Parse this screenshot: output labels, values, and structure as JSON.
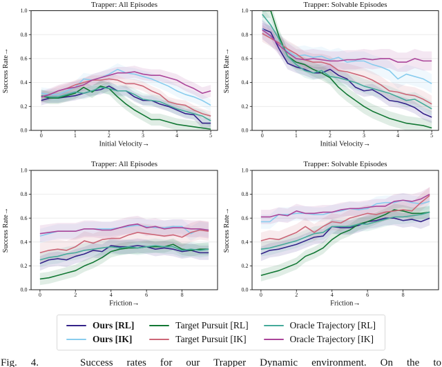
{
  "figure": {
    "caption": "Fig. 4.   Success rates for our Trapper Dynamic environment. On the to"
  },
  "legend": {
    "columns": [
      [
        {
          "label": "Ours [RL]",
          "color": "#332288"
        },
        {
          "label": "Ours [IK]",
          "color": "#88CCEE"
        }
      ],
      [
        {
          "label": "Target Pursuit [RL]",
          "color": "#117733"
        },
        {
          "label": "Target Pursuit [IK]",
          "color": "#CC6677"
        }
      ],
      [
        {
          "label": "Oracle Trajectory [RL]",
          "color": "#44AA99"
        },
        {
          "label": "Oracle Trajectory [IK]",
          "color": "#AA4499"
        }
      ]
    ]
  },
  "chart_data": [
    {
      "type": "line",
      "title": "Trapper: All Episodes",
      "xlabel": "Initial Velocity→",
      "ylabel": "Success Rate→",
      "xlim": [
        -0.3,
        5.2
      ],
      "ylim": [
        0,
        1
      ],
      "xticks": [
        0,
        1,
        2,
        3,
        4,
        5
      ],
      "yticks": [
        0.0,
        0.2,
        0.4,
        0.6,
        0.8,
        1.0
      ],
      "grid": "horizontal",
      "x": [
        0,
        0.25,
        0.5,
        0.75,
        1,
        1.25,
        1.5,
        1.75,
        2,
        2.25,
        2.5,
        2.75,
        3,
        3.25,
        3.5,
        3.75,
        4,
        4.25,
        4.5,
        4.75,
        5
      ],
      "series": [
        {
          "id": "ours-rl",
          "name": "Ours [RL]",
          "color": "#332288",
          "ci": 0.04,
          "values": [
            0.25,
            0.27,
            0.27,
            0.28,
            0.29,
            0.31,
            0.33,
            0.34,
            0.37,
            0.33,
            0.33,
            0.28,
            0.25,
            0.25,
            0.22,
            0.2,
            0.17,
            0.14,
            0.13,
            0.06,
            0.06
          ]
        },
        {
          "id": "ours-ik",
          "name": "Ours [IK]",
          "color": "#88CCEE",
          "ci": 0.05,
          "values": [
            0.31,
            0.3,
            0.3,
            0.33,
            0.36,
            0.43,
            0.42,
            0.44,
            0.47,
            0.51,
            0.48,
            0.47,
            0.45,
            0.43,
            0.4,
            0.37,
            0.33,
            0.3,
            0.28,
            0.25,
            0.21
          ]
        },
        {
          "id": "target-pursuit-rl",
          "name": "Target Pursuit [RL]",
          "color": "#117733",
          "ci": 0.05,
          "values": [
            0.29,
            0.27,
            0.27,
            0.29,
            0.31,
            0.36,
            0.32,
            0.37,
            0.35,
            0.28,
            0.22,
            0.17,
            0.13,
            0.09,
            0.09,
            0.07,
            0.05,
            0.04,
            0.03,
            0.02,
            0.01
          ]
        },
        {
          "id": "target-pursuit-ik",
          "name": "Target Pursuit [IK]",
          "color": "#CC6677",
          "ci": 0.04,
          "values": [
            0.28,
            0.3,
            0.33,
            0.35,
            0.38,
            0.4,
            0.42,
            0.42,
            0.43,
            0.42,
            0.39,
            0.39,
            0.37,
            0.33,
            0.3,
            0.24,
            0.22,
            0.21,
            0.17,
            0.14,
            0.12
          ]
        },
        {
          "id": "oracle-trajectory-rl",
          "name": "Oracle Trajectory [RL]",
          "color": "#44AA99",
          "ci": 0.05,
          "values": [
            0.29,
            0.28,
            0.28,
            0.3,
            0.32,
            0.31,
            0.33,
            0.36,
            0.35,
            0.33,
            0.33,
            0.3,
            0.26,
            0.25,
            0.24,
            0.21,
            0.18,
            0.16,
            0.14,
            0.12,
            0.08
          ]
        },
        {
          "id": "oracle-trajectory-ik",
          "name": "Oracle Trajectory [IK]",
          "color": "#AA4499",
          "ci": 0.05,
          "values": [
            0.28,
            0.3,
            0.33,
            0.35,
            0.36,
            0.38,
            0.42,
            0.44,
            0.46,
            0.48,
            0.48,
            0.49,
            0.47,
            0.46,
            0.46,
            0.44,
            0.42,
            0.38,
            0.35,
            0.31,
            0.33
          ]
        }
      ]
    },
    {
      "type": "line",
      "title": "Trapper: Solvable Episodes",
      "xlabel": "Initial Velocity→",
      "ylabel": "Success Rate→",
      "xlim": [
        -0.3,
        5.2
      ],
      "ylim": [
        0,
        1
      ],
      "xticks": [
        0,
        1,
        2,
        3,
        4,
        5
      ],
      "yticks": [
        0.0,
        0.2,
        0.4,
        0.6,
        0.8,
        1.0
      ],
      "grid": "horizontal",
      "x": [
        0,
        0.25,
        0.5,
        0.75,
        1,
        1.25,
        1.5,
        1.75,
        2,
        2.25,
        2.5,
        2.75,
        3,
        3.25,
        3.5,
        3.75,
        4,
        4.25,
        4.5,
        4.75,
        5
      ],
      "series": [
        {
          "id": "ours-rl",
          "name": "Ours [RL]",
          "color": "#332288",
          "ci": 0.05,
          "values": [
            0.85,
            0.82,
            0.68,
            0.56,
            0.53,
            0.51,
            0.48,
            0.48,
            0.51,
            0.46,
            0.43,
            0.36,
            0.33,
            0.34,
            0.3,
            0.25,
            0.24,
            0.22,
            0.19,
            0.14,
            0.11
          ]
        },
        {
          "id": "ours-ik",
          "name": "Ours [IK]",
          "color": "#88CCEE",
          "ci": 0.08,
          "values": [
            0.85,
            0.78,
            0.73,
            0.66,
            0.62,
            0.63,
            0.61,
            0.62,
            0.59,
            0.61,
            0.57,
            0.58,
            0.58,
            0.55,
            0.53,
            0.5,
            0.43,
            0.47,
            0.45,
            0.43,
            0.39
          ]
        },
        {
          "id": "target-pursuit-rl",
          "name": "Target Pursuit [RL]",
          "color": "#117733",
          "ci": 0.06,
          "values": [
            1.0,
            1.0,
            0.78,
            0.62,
            0.57,
            0.55,
            0.51,
            0.48,
            0.44,
            0.36,
            0.3,
            0.25,
            0.2,
            0.16,
            0.13,
            0.1,
            0.08,
            0.06,
            0.05,
            0.04,
            0.02
          ]
        },
        {
          "id": "target-pursuit-ik",
          "name": "Target Pursuit [IK]",
          "color": "#CC6677",
          "ci": 0.07,
          "values": [
            0.81,
            0.77,
            0.73,
            0.68,
            0.64,
            0.59,
            0.57,
            0.57,
            0.55,
            0.5,
            0.49,
            0.47,
            0.45,
            0.42,
            0.38,
            0.33,
            0.32,
            0.3,
            0.29,
            0.26,
            0.22
          ]
        },
        {
          "id": "oracle-trajectory-rl",
          "name": "Oracle Trajectory [RL]",
          "color": "#44AA99",
          "ci": 0.06,
          "values": [
            0.97,
            0.88,
            0.76,
            0.62,
            0.55,
            0.5,
            0.48,
            0.5,
            0.45,
            0.44,
            0.42,
            0.4,
            0.37,
            0.35,
            0.33,
            0.31,
            0.28,
            0.25,
            0.26,
            0.22,
            0.18
          ]
        },
        {
          "id": "oracle-trajectory-ik",
          "name": "Oracle Trajectory [IK]",
          "color": "#AA4499",
          "ci": 0.08,
          "values": [
            0.84,
            0.79,
            0.71,
            0.65,
            0.6,
            0.59,
            0.6,
            0.59,
            0.58,
            0.58,
            0.59,
            0.59,
            0.6,
            0.59,
            0.6,
            0.6,
            0.57,
            0.57,
            0.6,
            0.58,
            0.58
          ]
        }
      ]
    },
    {
      "type": "line",
      "title": "Trapper: All Episodes",
      "xlabel": "Friction→",
      "ylabel": "Success Rate→",
      "xlim": [
        -0.5,
        10.0
      ],
      "ylim": [
        0,
        1
      ],
      "xticks": [
        0,
        2,
        4,
        6,
        8
      ],
      "yticks": [
        0.0,
        0.2,
        0.4,
        0.6,
        0.8,
        1.0
      ],
      "grid": "horizontal",
      "x": [
        0,
        0.5,
        1,
        1.5,
        2,
        2.5,
        3,
        3.5,
        4,
        4.5,
        5,
        5.5,
        6,
        6.5,
        7,
        7.5,
        8,
        8.5,
        9,
        9.5
      ],
      "series": [
        {
          "id": "ours-rl",
          "name": "Ours [RL]",
          "color": "#332288",
          "ci": 0.06,
          "values": [
            0.22,
            0.25,
            0.26,
            0.25,
            0.28,
            0.3,
            0.33,
            0.32,
            0.37,
            0.36,
            0.36,
            0.37,
            0.36,
            0.34,
            0.35,
            0.34,
            0.32,
            0.33,
            0.31,
            0.31
          ]
        },
        {
          "id": "ours-ik",
          "name": "Ours [IK]",
          "color": "#88CCEE",
          "ci": 0.06,
          "values": [
            0.45,
            0.47,
            0.49,
            0.49,
            0.49,
            0.51,
            0.51,
            0.51,
            0.51,
            0.52,
            0.53,
            0.54,
            0.53,
            0.52,
            0.52,
            0.53,
            0.53,
            0.47,
            0.51,
            0.5
          ]
        },
        {
          "id": "target-pursuit-rl",
          "name": "Target Pursuit [RL]",
          "color": "#117733",
          "ci": 0.05,
          "values": [
            0.09,
            0.1,
            0.12,
            0.14,
            0.16,
            0.2,
            0.23,
            0.27,
            0.32,
            0.34,
            0.35,
            0.35,
            0.36,
            0.36,
            0.36,
            0.38,
            0.34,
            0.33,
            0.34,
            0.34
          ]
        },
        {
          "id": "target-pursuit-ik",
          "name": "Target Pursuit [IK]",
          "color": "#CC6677",
          "ci": 0.08,
          "values": [
            0.31,
            0.33,
            0.34,
            0.33,
            0.36,
            0.41,
            0.39,
            0.42,
            0.43,
            0.43,
            0.46,
            0.48,
            0.47,
            0.46,
            0.45,
            0.46,
            0.44,
            0.48,
            0.5,
            0.49
          ]
        },
        {
          "id": "oracle-trajectory-rl",
          "name": "Oracle Trajectory [RL]",
          "color": "#44AA99",
          "ci": 0.06,
          "values": [
            0.25,
            0.27,
            0.28,
            0.3,
            0.31,
            0.33,
            0.34,
            0.35,
            0.36,
            0.35,
            0.36,
            0.35,
            0.36,
            0.37,
            0.36,
            0.36,
            0.33,
            0.34,
            0.33,
            0.34
          ]
        },
        {
          "id": "oracle-trajectory-ik",
          "name": "Oracle Trajectory [IK]",
          "color": "#AA4499",
          "ci": 0.07,
          "values": [
            0.47,
            0.48,
            0.49,
            0.49,
            0.49,
            0.51,
            0.51,
            0.5,
            0.5,
            0.52,
            0.54,
            0.55,
            0.52,
            0.53,
            0.51,
            0.52,
            0.52,
            0.51,
            0.51,
            0.5
          ]
        }
      ]
    },
    {
      "type": "line",
      "title": "Trapper: Solvable Episodes",
      "xlabel": "Friction→",
      "ylabel": "Success Rate→",
      "xlim": [
        -0.5,
        10.0
      ],
      "ylim": [
        0,
        1
      ],
      "xticks": [
        0,
        2,
        4,
        6,
        8
      ],
      "yticks": [
        0.0,
        0.2,
        0.4,
        0.6,
        0.8,
        1.0
      ],
      "grid": "horizontal",
      "x": [
        0,
        0.5,
        1,
        1.5,
        2,
        2.5,
        3,
        3.5,
        4,
        4.5,
        5,
        5.5,
        6,
        6.5,
        7,
        7.5,
        8,
        8.5,
        9,
        9.5
      ],
      "series": [
        {
          "id": "ours-rl",
          "name": "Ours [RL]",
          "color": "#332288",
          "ci": 0.06,
          "values": [
            0.3,
            0.33,
            0.34,
            0.36,
            0.38,
            0.41,
            0.44,
            0.45,
            0.53,
            0.52,
            0.52,
            0.54,
            0.57,
            0.58,
            0.6,
            0.6,
            0.58,
            0.59,
            0.57,
            0.6
          ]
        },
        {
          "id": "ours-ik",
          "name": "Ours [IK]",
          "color": "#88CCEE",
          "ci": 0.06,
          "values": [
            0.57,
            0.57,
            0.63,
            0.63,
            0.64,
            0.64,
            0.63,
            0.63,
            0.65,
            0.66,
            0.68,
            0.67,
            0.68,
            0.72,
            0.73,
            0.73,
            0.75,
            0.73,
            0.72,
            0.74
          ]
        },
        {
          "id": "target-pursuit-rl",
          "name": "Target Pursuit [RL]",
          "color": "#117733",
          "ci": 0.05,
          "values": [
            0.12,
            0.14,
            0.16,
            0.19,
            0.22,
            0.28,
            0.31,
            0.35,
            0.42,
            0.47,
            0.5,
            0.55,
            0.57,
            0.6,
            0.63,
            0.67,
            0.66,
            0.64,
            0.64,
            0.65
          ]
        },
        {
          "id": "target-pursuit-ik",
          "name": "Target Pursuit [IK]",
          "color": "#CC6677",
          "ci": 0.07,
          "values": [
            0.41,
            0.43,
            0.42,
            0.45,
            0.48,
            0.53,
            0.48,
            0.53,
            0.57,
            0.56,
            0.6,
            0.62,
            0.64,
            0.63,
            0.65,
            0.66,
            0.67,
            0.66,
            0.73,
            0.79
          ]
        },
        {
          "id": "oracle-trajectory-rl",
          "name": "Oracle Trajectory [RL]",
          "color": "#44AA99",
          "ci": 0.06,
          "values": [
            0.34,
            0.35,
            0.37,
            0.39,
            0.41,
            0.44,
            0.47,
            0.48,
            0.53,
            0.53,
            0.53,
            0.55,
            0.55,
            0.57,
            0.59,
            0.61,
            0.61,
            0.62,
            0.63,
            0.65
          ]
        },
        {
          "id": "oracle-trajectory-ik",
          "name": "Oracle Trajectory [IK]",
          "color": "#AA4499",
          "ci": 0.06,
          "values": [
            0.61,
            0.61,
            0.63,
            0.62,
            0.66,
            0.64,
            0.64,
            0.65,
            0.65,
            0.67,
            0.68,
            0.68,
            0.69,
            0.7,
            0.7,
            0.74,
            0.75,
            0.74,
            0.76,
            0.8
          ]
        }
      ]
    }
  ]
}
